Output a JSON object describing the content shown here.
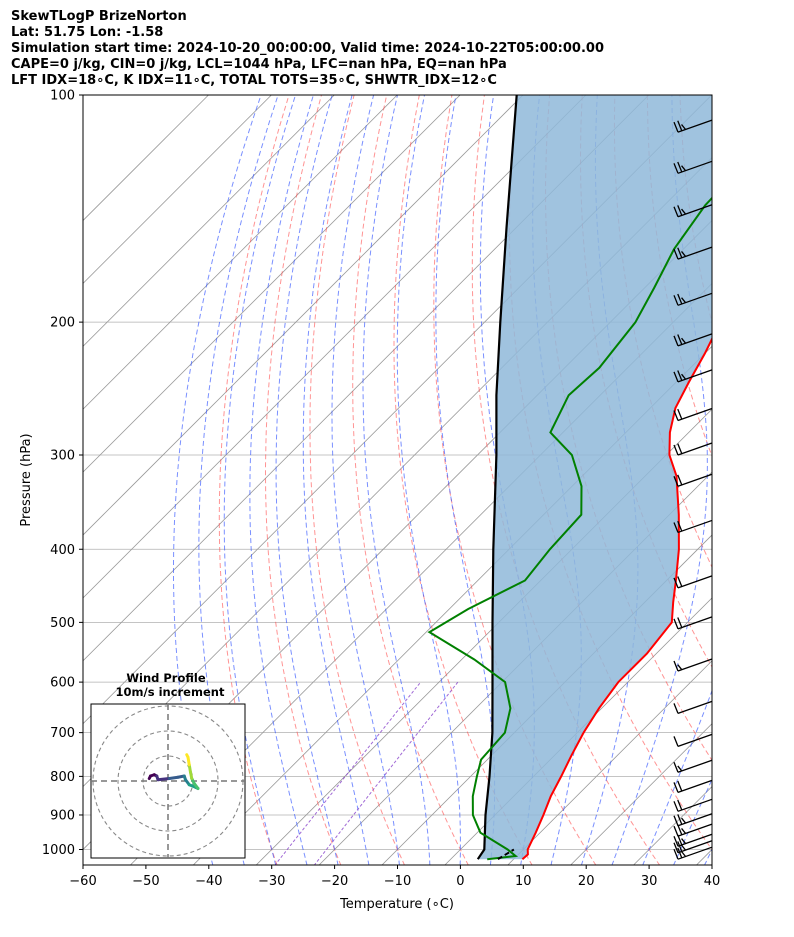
{
  "header": {
    "line1": "SkewTLogP BrizeNorton",
    "line2": "Lat: 51.75   Lon: -1.58",
    "line3": "Simulation start time: 2024-10-20_00:00:00, Valid time: 2024-10-22T05:00:00.00",
    "line4": "CAPE=0 j/kg, CIN=0 j/kg, LCL=1044 hPa, LFC=nan hPa, EQ=nan hPa",
    "line5": "LFT IDX=18∘C, K IDX=11∘C, TOTAL TOTS=35∘C, SHWTR_IDX=12∘C"
  },
  "chart_data": {
    "type": "skewt",
    "xlabel": "Temperature (∘C)",
    "ylabel": "Pressure (hPa)",
    "xlim": [
      -60,
      40
    ],
    "ylim_hpa": [
      1050,
      100
    ],
    "x_ticks": [
      -60,
      -50,
      -40,
      -30,
      -20,
      -10,
      0,
      10,
      20,
      30,
      40
    ],
    "x_tick_labels": [
      "−60",
      "−50",
      "−40",
      "−30",
      "−20",
      "−10",
      "0",
      "10",
      "20",
      "30",
      "40"
    ],
    "p_ticks": [
      1000,
      900,
      800,
      700,
      600,
      500,
      400,
      300,
      200,
      100
    ],
    "colors": {
      "temperature": "#ff0000",
      "dewpoint": "#008000",
      "parcel": "#000000",
      "fill": "#8fb9d9",
      "dry_adiabats": "#ff4d4d",
      "moist_adiabats": "#3355ff",
      "mixing_ratio": "#8844cc",
      "isotherms": "#999999"
    },
    "temperature": [
      [
        1030,
        11.4
      ],
      [
        1015,
        11.5
      ],
      [
        1000,
        10.7
      ],
      [
        950,
        9.3
      ],
      [
        900,
        7.7
      ],
      [
        850,
        5.9
      ],
      [
        800,
        4.4
      ],
      [
        750,
        2.7
      ],
      [
        700,
        1.0
      ],
      [
        650,
        -0.4
      ],
      [
        600,
        -1.5
      ],
      [
        550,
        -1.5
      ],
      [
        500,
        -2.5
      ],
      [
        470,
        -5.5
      ],
      [
        440,
        -8.5
      ],
      [
        400,
        -13.0
      ],
      [
        360,
        -18.5
      ],
      [
        320,
        -25.0
      ],
      [
        300,
        -29.5
      ],
      [
        280,
        -33.0
      ],
      [
        260,
        -36.0
      ],
      [
        240,
        -38.0
      ],
      [
        220,
        -40.0
      ],
      [
        200,
        -42.5
      ],
      [
        180,
        -46.0
      ],
      [
        160,
        -49.0
      ],
      [
        140,
        -51.5
      ],
      [
        120,
        -53.5
      ],
      [
        105,
        -55.5
      ],
      [
        100,
        -56.5
      ]
    ],
    "dewpoint": [
      [
        1030,
        5.8
      ],
      [
        1020,
        9.8
      ],
      [
        1000,
        7.5
      ],
      [
        950,
        0.5
      ],
      [
        900,
        -3.5
      ],
      [
        850,
        -6.5
      ],
      [
        800,
        -9.0
      ],
      [
        760,
        -11.0
      ],
      [
        700,
        -11.5
      ],
      [
        650,
        -14.5
      ],
      [
        600,
        -19.5
      ],
      [
        560,
        -28.0
      ],
      [
        515,
        -39.5
      ],
      [
        480,
        -37.0
      ],
      [
        440,
        -32.5
      ],
      [
        400,
        -33.5
      ],
      [
        360,
        -34.0
      ],
      [
        330,
        -38.5
      ],
      [
        300,
        -45.0
      ],
      [
        280,
        -52.0
      ],
      [
        250,
        -55.0
      ],
      [
        230,
        -54.5
      ],
      [
        200,
        -56.0
      ],
      [
        180,
        -58.5
      ],
      [
        160,
        -61.5
      ],
      [
        140,
        -63.5
      ],
      [
        120,
        -64.0
      ],
      [
        100,
        -65.0
      ]
    ],
    "parcel": [
      [
        1030,
        4.3
      ],
      [
        1000,
        3.8
      ],
      [
        900,
        -1.5
      ],
      [
        800,
        -7.0
      ],
      [
        700,
        -13.5
      ],
      [
        600,
        -21.5
      ],
      [
        500,
        -31.0
      ],
      [
        400,
        -42.5
      ],
      [
        300,
        -57.0
      ],
      [
        250,
        -66.5
      ],
      [
        200,
        -77.5
      ],
      [
        150,
        -91.5
      ],
      [
        100,
        -111.0
      ]
    ],
    "surface_marker": [
      [
        1030,
        7.5
      ],
      [
        1000,
        8.5
      ]
    ],
    "wind_barbs": [
      {
        "p": 1030,
        "speed_kt": 25
      },
      {
        "p": 1010,
        "speed_kt": 25
      },
      {
        "p": 990,
        "speed_kt": 25
      },
      {
        "p": 960,
        "speed_kt": 25
      },
      {
        "p": 930,
        "speed_kt": 25
      },
      {
        "p": 890,
        "speed_kt": 20
      },
      {
        "p": 840,
        "speed_kt": 20
      },
      {
        "p": 790,
        "speed_kt": 15
      },
      {
        "p": 730,
        "speed_kt": 10
      },
      {
        "p": 660,
        "speed_kt": 10
      },
      {
        "p": 580,
        "speed_kt": 15
      },
      {
        "p": 510,
        "speed_kt": 20
      },
      {
        "p": 450,
        "speed_kt": 20
      },
      {
        "p": 380,
        "speed_kt": 20
      },
      {
        "p": 330,
        "speed_kt": 20
      },
      {
        "p": 300,
        "speed_kt": 20
      },
      {
        "p": 270,
        "speed_kt": 20
      },
      {
        "p": 240,
        "speed_kt": 25
      },
      {
        "p": 215,
        "speed_kt": 25
      },
      {
        "p": 190,
        "speed_kt": 25
      },
      {
        "p": 165,
        "speed_kt": 25
      },
      {
        "p": 145,
        "speed_kt": 25
      },
      {
        "p": 127,
        "speed_kt": 25
      },
      {
        "p": 112,
        "speed_kt": 25
      }
    ],
    "inset": {
      "title_line1": "Wind Profile",
      "title_line2": "10m/s increment",
      "rings_ms": [
        10,
        20,
        30
      ],
      "hodograph_uv": [
        [
          -7.5,
          1.0
        ],
        [
          -7.0,
          2.0
        ],
        [
          -5.5,
          2.5
        ],
        [
          -4.5,
          2.0
        ],
        [
          -4.0,
          0.5
        ],
        [
          0.5,
          1.0
        ],
        [
          4.0,
          1.5
        ],
        [
          6.5,
          2.0
        ],
        [
          7.0,
          0.5
        ],
        [
          8.5,
          -1.5
        ],
        [
          11.0,
          -2.5
        ],
        [
          12.0,
          -3.0
        ],
        [
          10.5,
          -1.0
        ],
        [
          9.5,
          1.0
        ],
        [
          9.0,
          3.5
        ],
        [
          8.5,
          6.5
        ],
        [
          8.0,
          9.5
        ],
        [
          7.5,
          10.5
        ]
      ]
    }
  }
}
